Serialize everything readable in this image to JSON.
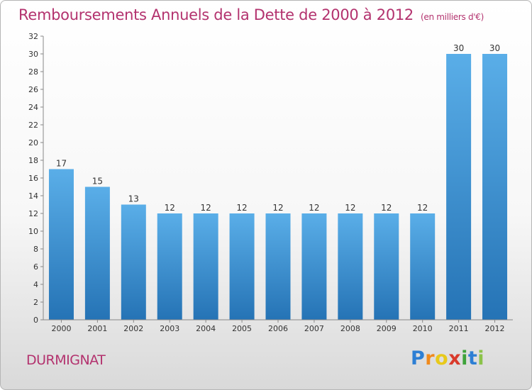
{
  "chart_data": {
    "type": "bar",
    "title": "Remboursements Annuels de la Dette de 2000 à 2012",
    "unit_note": "(en milliers d'€)",
    "xlabel": "",
    "ylabel": "",
    "categories": [
      "2000",
      "2001",
      "2002",
      "2003",
      "2004",
      "2005",
      "2006",
      "2007",
      "2008",
      "2009",
      "2010",
      "2011",
      "2012"
    ],
    "values": [
      17,
      15,
      13,
      12,
      12,
      12,
      12,
      12,
      12,
      12,
      12,
      30,
      30
    ],
    "data_labels": [
      "17",
      "15",
      "13",
      "12",
      "12",
      "12",
      "12",
      "12",
      "12",
      "12",
      "12",
      "30",
      "30"
    ],
    "ylim": [
      0,
      32
    ],
    "yticks": [
      0,
      2,
      4,
      6,
      8,
      10,
      12,
      14,
      16,
      18,
      20,
      22,
      24,
      26,
      28,
      30,
      32
    ],
    "grid": false,
    "legend": "none",
    "colors": {
      "bar_top": "#5aaee8",
      "bar_bottom": "#2573b5",
      "title": "#b3326e"
    }
  },
  "place_name": "DURMIGNAT",
  "logo": {
    "letters": [
      "P",
      "r",
      "o",
      "x",
      "i",
      "t",
      "i"
    ],
    "colors": [
      "#2d7fd4",
      "#f08a1c",
      "#e8c91a",
      "#d93a2b",
      "#3ea33a",
      "#2d7fd4",
      "#8bc34a"
    ]
  }
}
